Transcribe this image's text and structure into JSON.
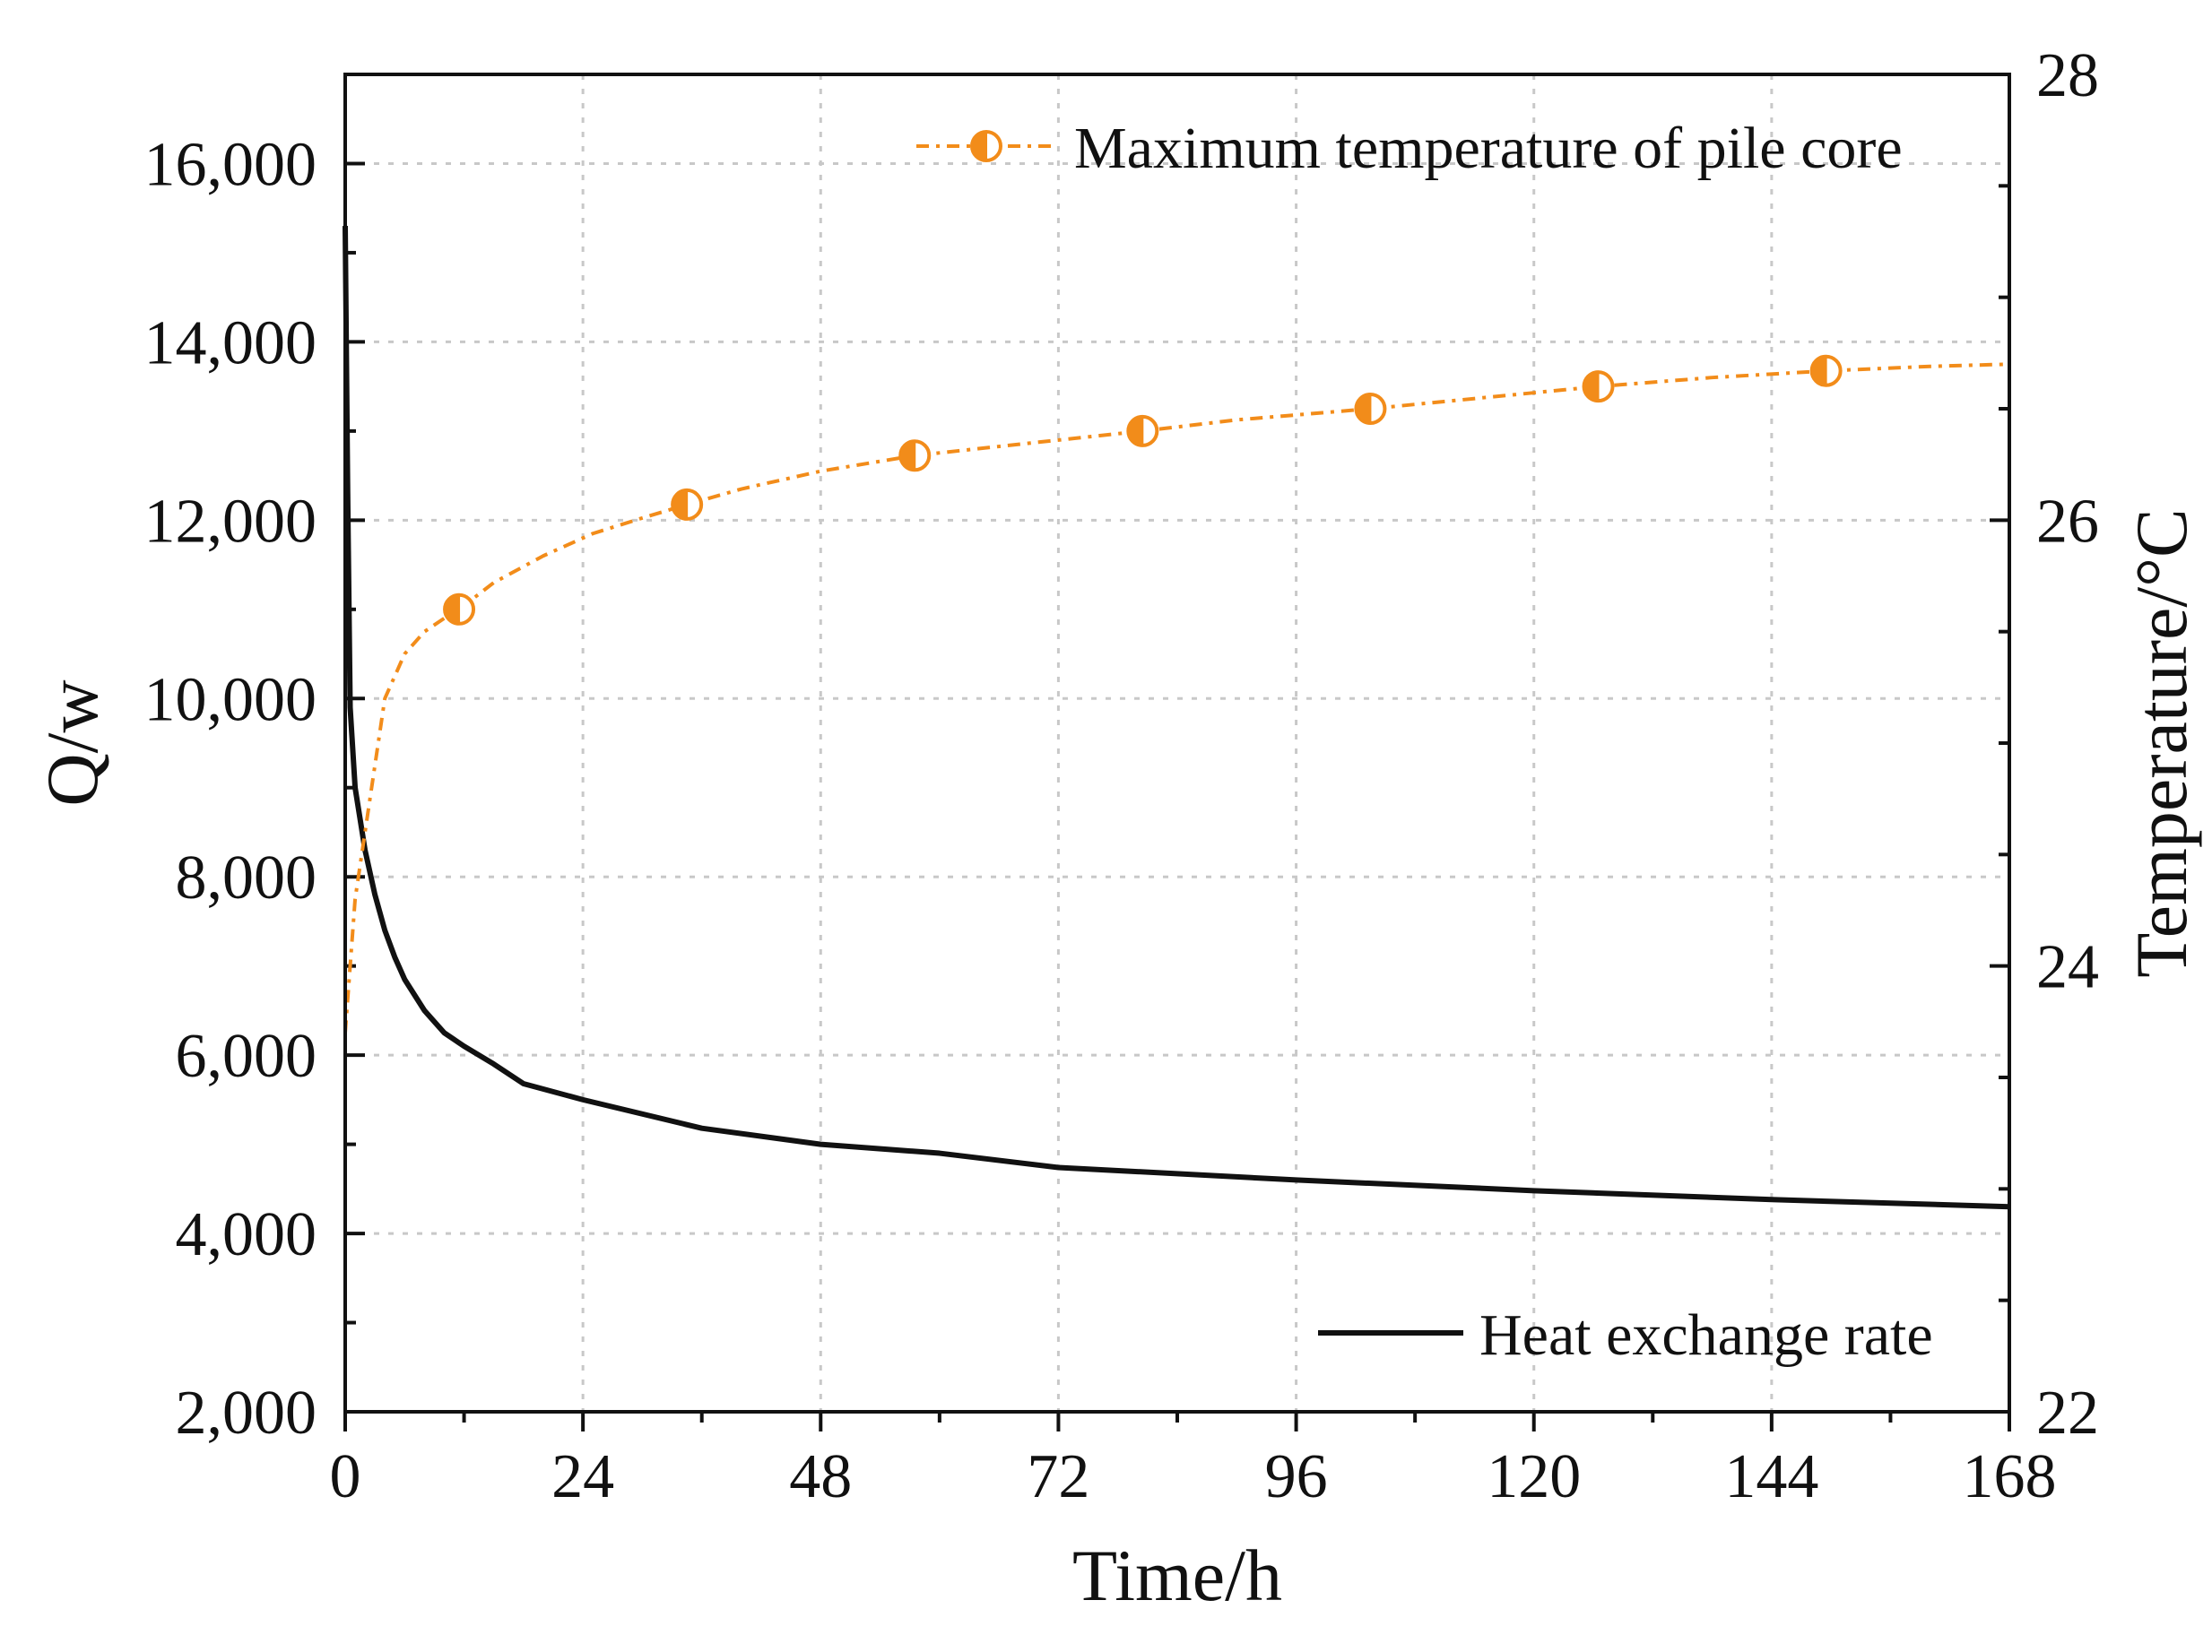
{
  "chart_data": {
    "type": "line",
    "xlabel": "Time/h",
    "ylabel_left": "Q/w",
    "ylabel_right": "Temperature/°C",
    "xlim": [
      0,
      168
    ],
    "ylim_left": [
      2000,
      17000
    ],
    "ylim_right": [
      22,
      28
    ],
    "x_ticks": [
      0,
      24,
      48,
      72,
      96,
      120,
      144,
      168
    ],
    "x_tick_labels": [
      "0",
      "24",
      "48",
      "72",
      "96",
      "120",
      "144",
      "168"
    ],
    "y_left_ticks": [
      2000,
      4000,
      6000,
      8000,
      10000,
      12000,
      14000,
      16000
    ],
    "y_left_tick_labels": [
      "2,000",
      "4,000",
      "6,000",
      "8,000",
      "10,000",
      "12,000",
      "14,000",
      "16,000"
    ],
    "y_right_ticks": [
      22,
      24,
      26,
      28
    ],
    "y_right_tick_labels": [
      "22",
      "24",
      "26",
      "28"
    ],
    "grid": true,
    "series": [
      {
        "name": "Heat exchange rate",
        "axis": "left",
        "color": "#111111",
        "style": "solid",
        "x": [
          0,
          0.25,
          0.5,
          1,
          2,
          3,
          4,
          5,
          6,
          8,
          10,
          12,
          15,
          18,
          24,
          36,
          48,
          60,
          72,
          96,
          120,
          144,
          168
        ],
        "y": [
          15300,
          12300,
          9900,
          9000,
          8300,
          7800,
          7400,
          7100,
          6850,
          6500,
          6250,
          6100,
          5900,
          5680,
          5500,
          5180,
          5000,
          4900,
          4740,
          4600,
          4480,
          4380,
          4300
        ]
      },
      {
        "name": "Maximum temperature of pile core",
        "axis": "right",
        "color": "#F28C1A",
        "style": "dash-dot",
        "marker": "half-filled-circle",
        "x": [
          0,
          1,
          2,
          3,
          4,
          6,
          8,
          10,
          11.5,
          15,
          20,
          25,
          30,
          34.5,
          40,
          48,
          57.5,
          70,
          80.5,
          90,
          103.5,
          115,
          126.5,
          138,
          149.5,
          160,
          168
        ],
        "y": [
          23.7,
          24.3,
          24.6,
          24.9,
          25.2,
          25.4,
          25.5,
          25.56,
          25.6,
          25.72,
          25.84,
          25.94,
          26.01,
          26.07,
          26.14,
          26.22,
          26.29,
          26.35,
          26.4,
          26.45,
          26.5,
          26.55,
          26.6,
          26.64,
          26.67,
          26.69,
          26.7
        ],
        "marker_x": [
          11.5,
          34.5,
          57.5,
          80.5,
          103.5,
          126.5,
          149.5
        ]
      }
    ],
    "legend": [
      {
        "label": "Maximum temperature of pile core",
        "placement": "top-right"
      },
      {
        "label": "Heat exchange rate",
        "placement": "bottom-right"
      }
    ]
  }
}
